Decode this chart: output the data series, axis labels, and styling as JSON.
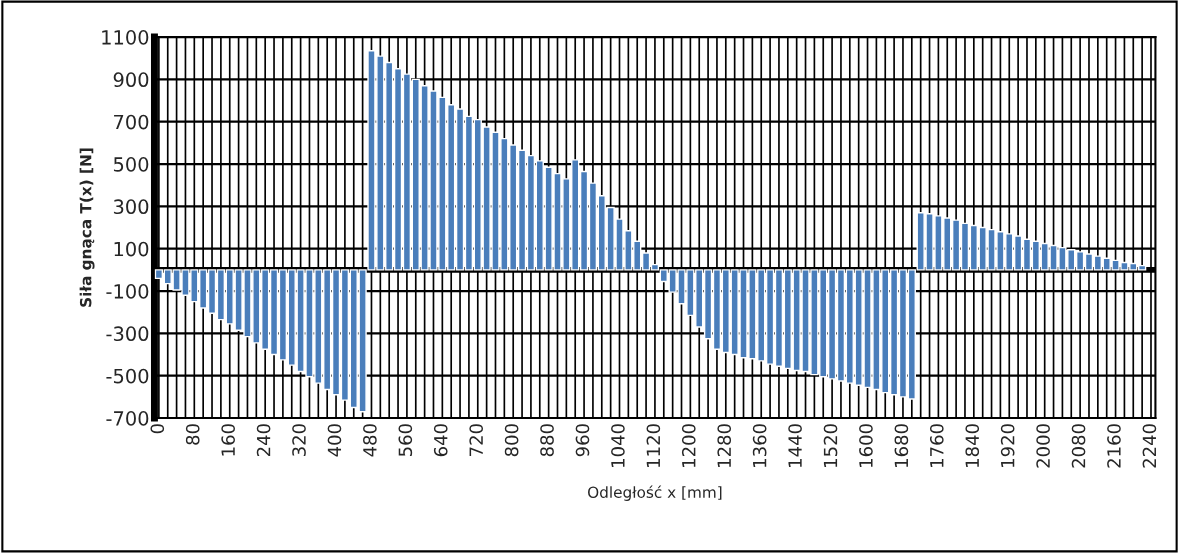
{
  "chart_data": {
    "type": "bar",
    "xlabel": "Odległość x [mm]",
    "ylabel": "Siła gnąca T(x) [N]",
    "categories": [
      "0",
      null,
      null,
      null,
      "80",
      null,
      null,
      null,
      "160",
      null,
      null,
      null,
      "240",
      null,
      null,
      null,
      "320",
      null,
      null,
      null,
      "400",
      null,
      null,
      null,
      "480",
      null,
      null,
      null,
      "560",
      null,
      null,
      null,
      "640",
      null,
      null,
      null,
      "720",
      null,
      null,
      null,
      "800",
      null,
      null,
      null,
      "880",
      null,
      null,
      null,
      "960",
      null,
      null,
      null,
      "1040",
      null,
      null,
      null,
      "1120",
      null,
      null,
      null,
      "1200",
      null,
      null,
      null,
      "1280",
      null,
      null,
      null,
      "1360",
      null,
      null,
      null,
      "1440",
      null,
      null,
      null,
      "1520",
      null,
      null,
      null,
      "1600",
      null,
      null,
      null,
      "1680",
      null,
      null,
      null,
      "1760",
      null,
      null,
      null,
      "1840",
      null,
      null,
      null,
      "1920",
      null,
      null,
      null,
      "2000",
      null,
      null,
      null,
      "2080",
      null,
      null,
      null,
      "2160",
      null,
      null,
      null,
      "2240"
    ],
    "values": [
      -40,
      -65,
      -95,
      -120,
      -150,
      -180,
      -205,
      -235,
      -255,
      -285,
      -315,
      -345,
      -375,
      -400,
      -425,
      -450,
      -480,
      -505,
      -535,
      -565,
      -590,
      -615,
      -650,
      -670,
      1035,
      1010,
      980,
      950,
      925,
      900,
      870,
      845,
      815,
      780,
      760,
      725,
      710,
      675,
      650,
      620,
      590,
      565,
      540,
      515,
      485,
      455,
      430,
      520,
      465,
      410,
      350,
      295,
      240,
      185,
      135,
      80,
      25,
      -55,
      -105,
      -160,
      -215,
      -270,
      -325,
      -375,
      -390,
      -400,
      -415,
      -420,
      -430,
      -445,
      -455,
      -465,
      -475,
      -480,
      -495,
      -505,
      -515,
      -525,
      -535,
      -545,
      -555,
      -565,
      -580,
      -590,
      -600,
      -610,
      270,
      265,
      255,
      245,
      235,
      220,
      210,
      200,
      190,
      180,
      170,
      160,
      145,
      135,
      125,
      115,
      105,
      95,
      85,
      75,
      65,
      55,
      45,
      35,
      30,
      20,
      null
    ],
    "color": "#4a7ebb",
    "ylim": [
      -700,
      1100
    ],
    "yticks": [
      -700,
      -500,
      -300,
      -100,
      100,
      300,
      500,
      700,
      900,
      1100
    ],
    "grid": true
  }
}
